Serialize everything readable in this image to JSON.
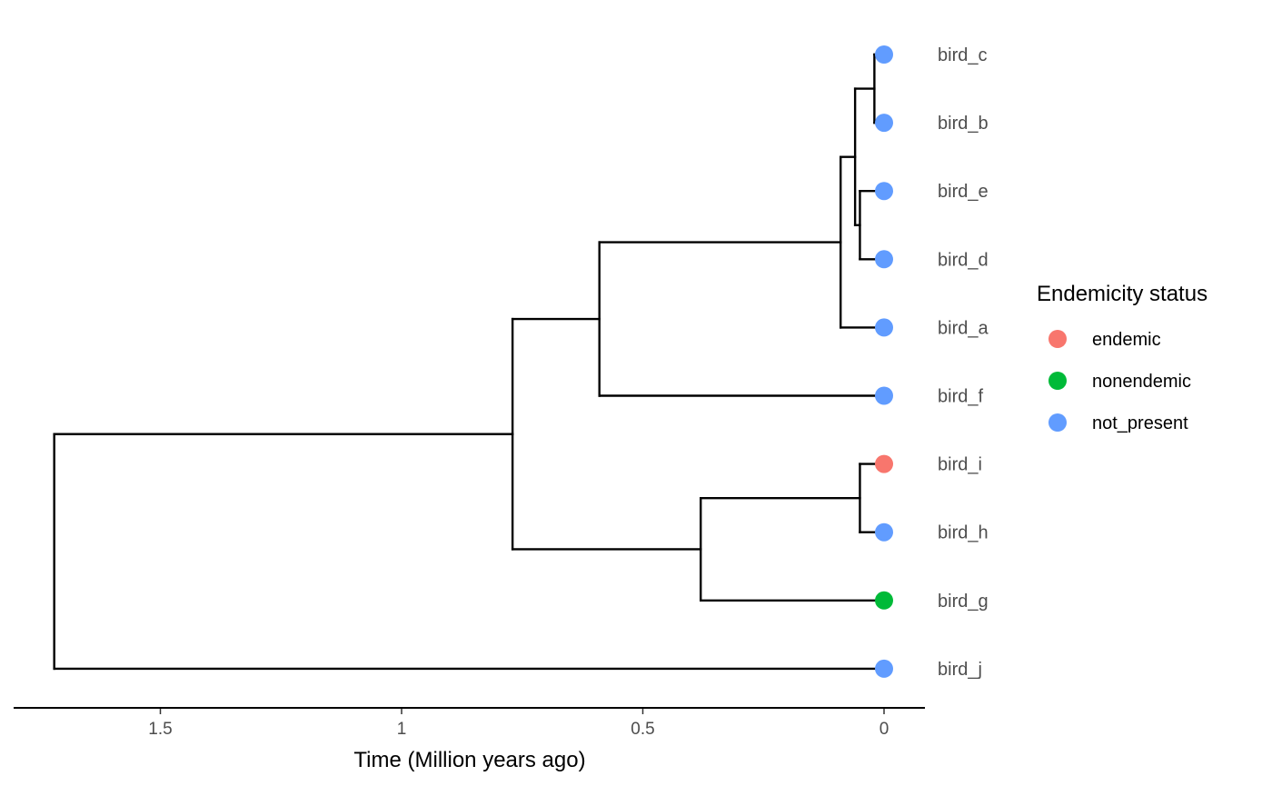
{
  "chart_data": {
    "type": "phylogenetic-tree",
    "xlabel": "Time (Million years ago)",
    "x_ticks": [
      1.5,
      1,
      0.5,
      0
    ],
    "x_tick_labels": [
      "1.5",
      "1",
      "0.5",
      "0"
    ],
    "xlim": [
      1.72,
      0
    ],
    "axis_reversed": true,
    "tips": [
      {
        "name": "bird_c",
        "status": "not_present"
      },
      {
        "name": "bird_b",
        "status": "not_present"
      },
      {
        "name": "bird_e",
        "status": "not_present"
      },
      {
        "name": "bird_d",
        "status": "not_present"
      },
      {
        "name": "bird_a",
        "status": "not_present"
      },
      {
        "name": "bird_f",
        "status": "not_present"
      },
      {
        "name": "bird_i",
        "status": "endemic"
      },
      {
        "name": "bird_h",
        "status": "not_present"
      },
      {
        "name": "bird_g",
        "status": "nonendemic"
      },
      {
        "name": "bird_j",
        "status": "not_present"
      }
    ],
    "nodes": [
      {
        "id": "n_cb",
        "age": 0.02,
        "children": [
          "bird_c",
          "bird_b"
        ]
      },
      {
        "id": "n_ed",
        "age": 0.05,
        "children": [
          "bird_e",
          "bird_d"
        ]
      },
      {
        "id": "n_cbed",
        "age": 0.06,
        "children": [
          "n_cb",
          "n_ed"
        ]
      },
      {
        "id": "n_cbeda",
        "age": 0.09,
        "children": [
          "n_cbed",
          "bird_a"
        ]
      },
      {
        "id": "n_af",
        "age": 0.59,
        "children": [
          "n_cbeda",
          "bird_f"
        ]
      },
      {
        "id": "n_ih",
        "age": 0.05,
        "children": [
          "bird_i",
          "bird_h"
        ]
      },
      {
        "id": "n_ihg",
        "age": 0.38,
        "children": [
          "n_ih",
          "bird_g"
        ]
      },
      {
        "id": "n_mid",
        "age": 0.77,
        "children": [
          "n_af",
          "n_ihg"
        ]
      },
      {
        "id": "root",
        "age": 1.72,
        "children": [
          "n_mid",
          "bird_j"
        ]
      }
    ],
    "legend": {
      "title": "Endemicity status",
      "position": "right",
      "entries": [
        {
          "label": "endemic",
          "color": "#F8766D"
        },
        {
          "label": "nonendemic",
          "color": "#00BA38"
        },
        {
          "label": "not_present",
          "color": "#619CFF"
        }
      ]
    },
    "grid": false
  }
}
